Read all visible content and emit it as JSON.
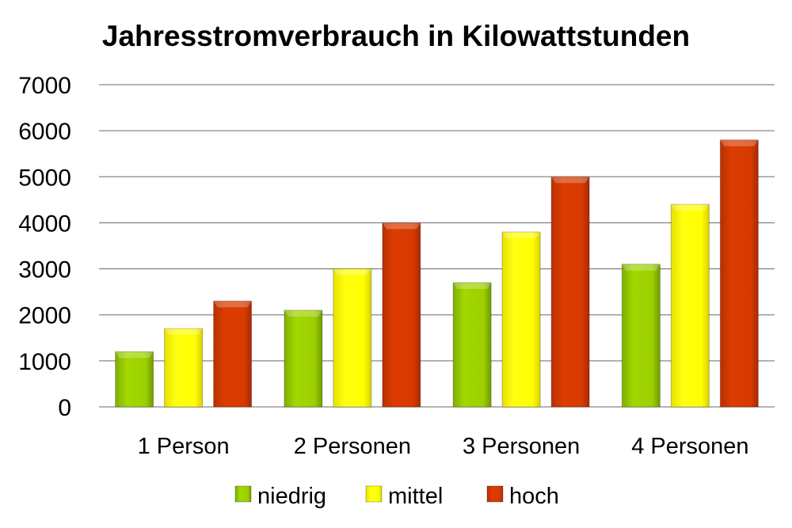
{
  "chart_data": {
    "type": "bar",
    "title": "Jahresstromverbrauch in Kilowattstunden",
    "xlabel": "",
    "ylabel": "",
    "ylim": [
      0,
      7000
    ],
    "yticks": [
      "0",
      "1000",
      "2000",
      "3000",
      "4000",
      "5000",
      "6000",
      "7000"
    ],
    "grid": true,
    "legend_position": "bottom",
    "categories": [
      "1 Person",
      "2 Personen",
      "3 Personen",
      "4 Personen"
    ],
    "series": [
      {
        "name": "niedrig",
        "color": "#9ccf00",
        "values": [
          1200,
          2100,
          2700,
          3100
        ]
      },
      {
        "name": "mittel",
        "color": "#ffff00",
        "values": [
          1700,
          3000,
          3800,
          4400
        ]
      },
      {
        "name": "hoch",
        "color": "#d83a00",
        "values": [
          2300,
          4000,
          5000,
          5800
        ]
      }
    ]
  }
}
